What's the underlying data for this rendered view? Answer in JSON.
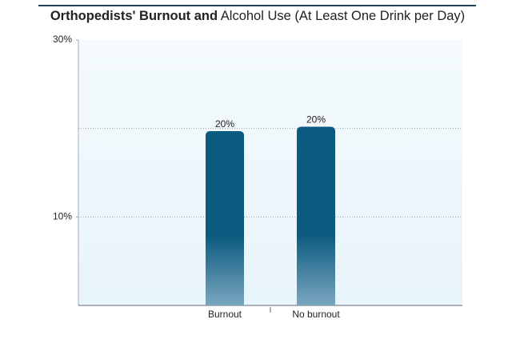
{
  "chart_data": {
    "type": "bar",
    "title": {
      "bold": "Orthopedists' Burnout and",
      "regular": "Alcohol Use (At Least One Drink per Day)"
    },
    "categories": [
      "Burnout",
      "No burnout"
    ],
    "values": [
      19.7,
      20.2
    ],
    "value_labels": [
      "20%",
      "20%"
    ],
    "color": "#0b5a7f",
    "ylim": [
      0,
      30
    ],
    "yticks": [
      {
        "value": 10,
        "label": "10%"
      },
      {
        "value": 30,
        "label": "30%"
      }
    ],
    "ygrid": [
      10,
      20
    ]
  }
}
